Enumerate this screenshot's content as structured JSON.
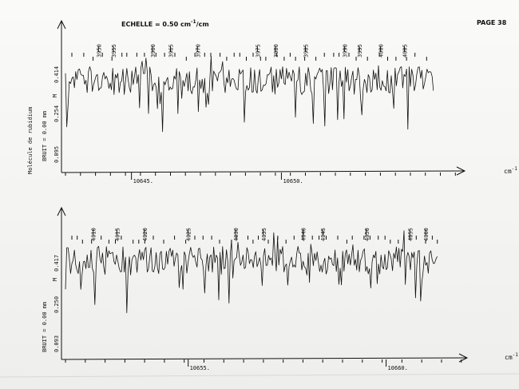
{
  "header": {
    "scale_label": "ECHELLE = 0.50 cm",
    "scale_sup": "-1",
    "scale_suffix": "/cm",
    "page_label": "PAGE 38"
  },
  "side_label": "Molécule de rubidium",
  "chart_data": [
    {
      "type": "line",
      "panel": "top",
      "xlabel": "cm",
      "xlabel_sup": "-1",
      "x_ticks": [
        {
          "value": 10645,
          "label": "10645."
        },
        {
          "value": 10650,
          "label": "10650."
        }
      ],
      "xlim": [
        10642.8,
        10655.1
      ],
      "y_ticks": [
        "0.095",
        "0.254",
        "0.414"
      ],
      "y_marker": "M",
      "noise_label": "BRUIT = 0.00 mm",
      "line_labels": [
        {
          "label": "3950",
          "x": 10643.9
        },
        {
          "label": "3955",
          "x": 10644.4
        },
        {
          "label": "3960",
          "x": 10645.7
        },
        {
          "label": "3965",
          "x": 10646.3
        },
        {
          "label": "3970",
          "x": 10647.2
        },
        {
          "label": "3975",
          "x": 10649.2
        },
        {
          "label": "3980",
          "x": 10649.8
        },
        {
          "label": "3985",
          "x": 10650.8
        },
        {
          "label": "3990",
          "x": 10652.1
        },
        {
          "label": "3995",
          "x": 10652.6
        },
        {
          "label": "4000",
          "x": 10653.3
        },
        {
          "label": "4005",
          "x": 10654.1
        }
      ]
    },
    {
      "type": "line",
      "panel": "bottom",
      "xlabel": "cm",
      "xlabel_sup": "-1",
      "x_ticks": [
        {
          "value": 10655,
          "label": "10655."
        },
        {
          "value": 10660,
          "label": "10660."
        }
      ],
      "xlim": [
        10651.9,
        10661.3
      ],
      "y_ticks": [
        "0.093",
        "0.250",
        "0.417"
      ],
      "y_marker": "M",
      "noise_label": "BRUIT = 0.00 mm",
      "line_labels": [
        {
          "label": "4010",
          "x": 10652.6
        },
        {
          "label": "4015",
          "x": 10653.2
        },
        {
          "label": "4020",
          "x": 10653.9
        },
        {
          "label": "4025",
          "x": 10655.0
        },
        {
          "label": "4030",
          "x": 10656.2
        },
        {
          "label": "4035",
          "x": 10656.9
        },
        {
          "label": "4040",
          "x": 10657.9
        },
        {
          "label": "4045",
          "x": 10658.4
        },
        {
          "label": "4050",
          "x": 10659.5
        },
        {
          "label": "4055",
          "x": 10660.6
        },
        {
          "label": "4060",
          "x": 10661.0
        }
      ]
    }
  ]
}
